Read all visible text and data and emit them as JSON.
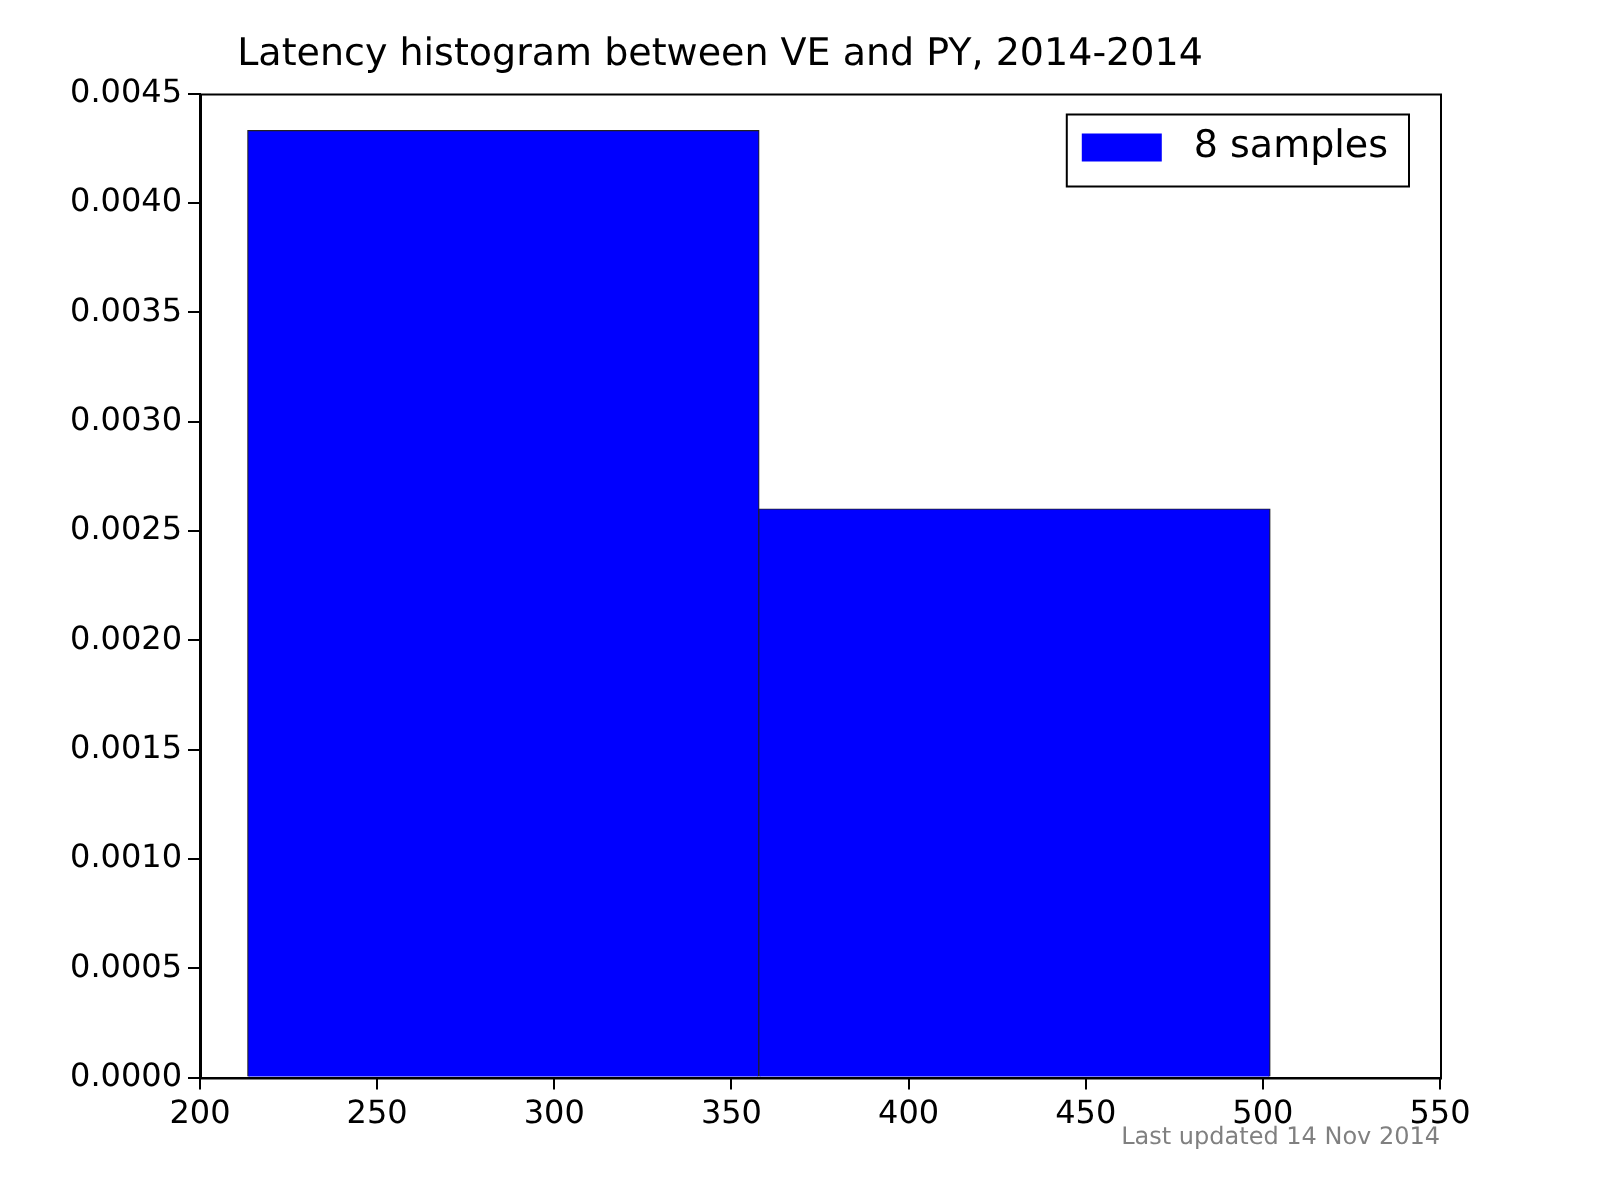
{
  "chart_data": {
    "type": "histogram",
    "title": "Latency histogram between VE and PY, 2014-2014",
    "bins": [
      213.5,
      357.75,
      502
    ],
    "series": [
      {
        "name": "8 samples",
        "color": "#0000ff",
        "values": [
          0.00433,
          0.0026
        ]
      }
    ],
    "xlim": [
      200,
      550
    ],
    "xticks": [
      200,
      250,
      300,
      350,
      400,
      450,
      500,
      550
    ],
    "ylim": [
      0,
      0.0045
    ],
    "yticks": [
      {
        "value": 0,
        "label": "0.0000"
      },
      {
        "value": 0.0005,
        "label": "0.0005"
      },
      {
        "value": 0.001,
        "label": "0.0010"
      },
      {
        "value": 0.0015,
        "label": "0.0015"
      },
      {
        "value": 0.002,
        "label": "0.0020"
      },
      {
        "value": 0.0025,
        "label": "0.0025"
      },
      {
        "value": 0.003,
        "label": "0.0030"
      },
      {
        "value": 0.0035,
        "label": "0.0035"
      },
      {
        "value": 0.004,
        "label": "0.0040"
      },
      {
        "value": 0.0045,
        "label": "0.0045"
      }
    ],
    "grid": false,
    "legend": "top right",
    "annotations": [
      "Last updated 14 Nov 2014"
    ]
  }
}
